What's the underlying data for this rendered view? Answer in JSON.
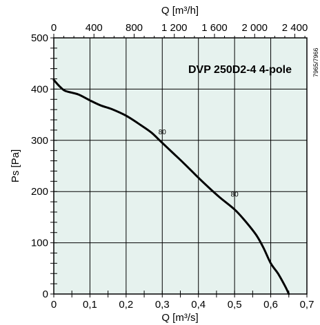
{
  "chart_data": {
    "type": "line",
    "title": "DVP 250D2-4 4-pole",
    "xlabel": "Q [m³/s]",
    "ylabel": "Ps [Pa]",
    "x2label": "Q [m³/h]",
    "xlim": [
      0,
      0.7
    ],
    "ylim": [
      0,
      500
    ],
    "x2lim": [
      0,
      2520
    ],
    "x_ticks": [
      "0",
      "0,1",
      "0,2",
      "0,3",
      "0,4",
      "0,5",
      "0,6",
      "0,7"
    ],
    "y_ticks": [
      "0",
      "100",
      "200",
      "300",
      "400",
      "500"
    ],
    "x2_ticks": [
      "0",
      "400",
      "800",
      "1 200",
      "1 600",
      "2 000",
      "2 400"
    ],
    "grid": true,
    "background_color": "#e6f2ee",
    "series": [
      {
        "x": [
          0,
          0.015,
          0.03,
          0.05,
          0.07,
          0.1,
          0.13,
          0.16,
          0.2,
          0.24,
          0.27,
          0.3,
          0.33,
          0.36,
          0.4,
          0.43,
          0.46,
          0.5,
          0.53,
          0.56,
          0.58,
          0.6,
          0.62,
          0.64,
          0.65
        ],
        "y": [
          418,
          406,
          397,
          393,
          389,
          378,
          368,
          361,
          348,
          330,
          315,
          295,
          275,
          255,
          227,
          207,
          188,
          165,
          142,
          115,
          90,
          60,
          40,
          15,
          0
        ]
      }
    ],
    "annotations": [
      {
        "text": "80",
        "x": 0.3,
        "y": 312
      },
      {
        "text": "80",
        "x": 0.5,
        "y": 190
      }
    ],
    "code": "7965/7966"
  }
}
